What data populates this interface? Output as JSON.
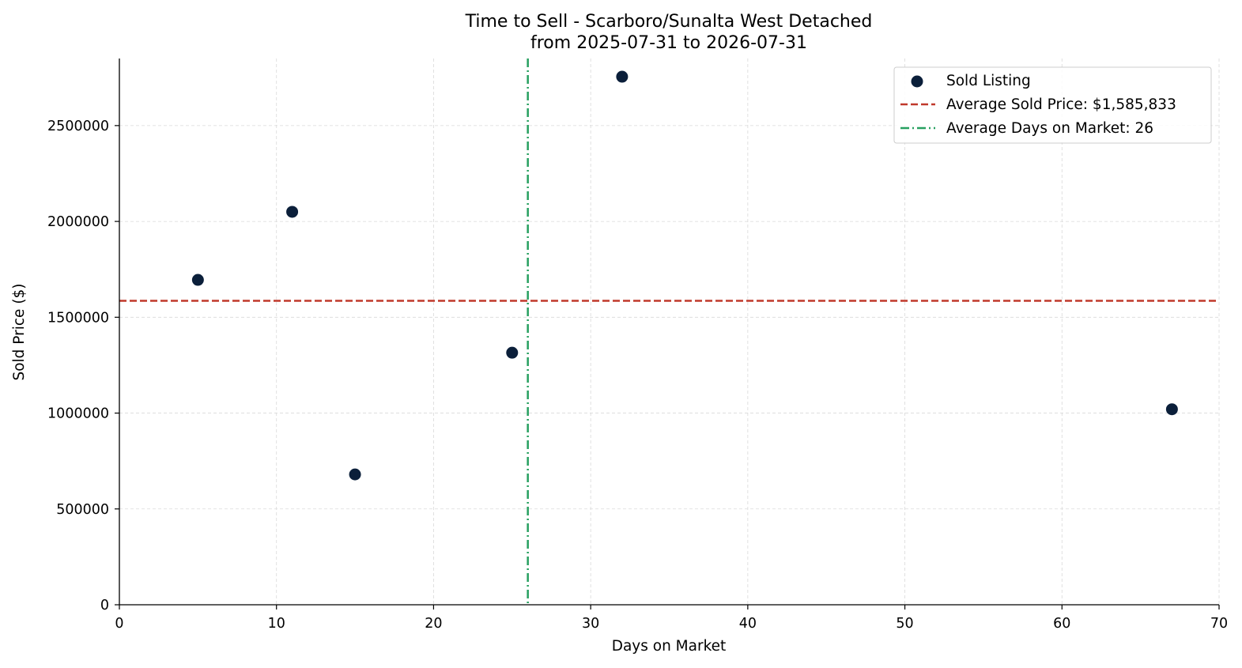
{
  "chart_data": {
    "type": "scatter",
    "title": "Time to Sell - Scarboro/Sunalta West Detached",
    "subtitle": "from 2025-07-31 to 2026-07-31",
    "xlabel": "Days on Market",
    "ylabel": "Sold Price ($)",
    "xlim": [
      0,
      70
    ],
    "ylim": [
      0,
      2850000
    ],
    "xticks": [
      0,
      10,
      20,
      30,
      40,
      50,
      60,
      70
    ],
    "yticks": [
      0,
      500000,
      1000000,
      1500000,
      2000000,
      2500000
    ],
    "grid": true,
    "legend_position": "top-right",
    "series": [
      {
        "name": "Sold Listing",
        "color": "#0b1f3a",
        "points": [
          {
            "x": 5,
            "y": 1695000
          },
          {
            "x": 11,
            "y": 2050000
          },
          {
            "x": 15,
            "y": 680000
          },
          {
            "x": 25,
            "y": 1315000
          },
          {
            "x": 32,
            "y": 2755000
          },
          {
            "x": 67,
            "y": 1020000
          }
        ]
      }
    ],
    "reference_lines": [
      {
        "name": "Average Sold Price: $1,585,833",
        "orientation": "horizontal",
        "value": 1585833,
        "color": "#c0392b",
        "style": "dashed"
      },
      {
        "name": "Average Days on Market: 26",
        "orientation": "vertical",
        "value": 26,
        "color": "#27a060",
        "style": "dashdot"
      }
    ]
  }
}
